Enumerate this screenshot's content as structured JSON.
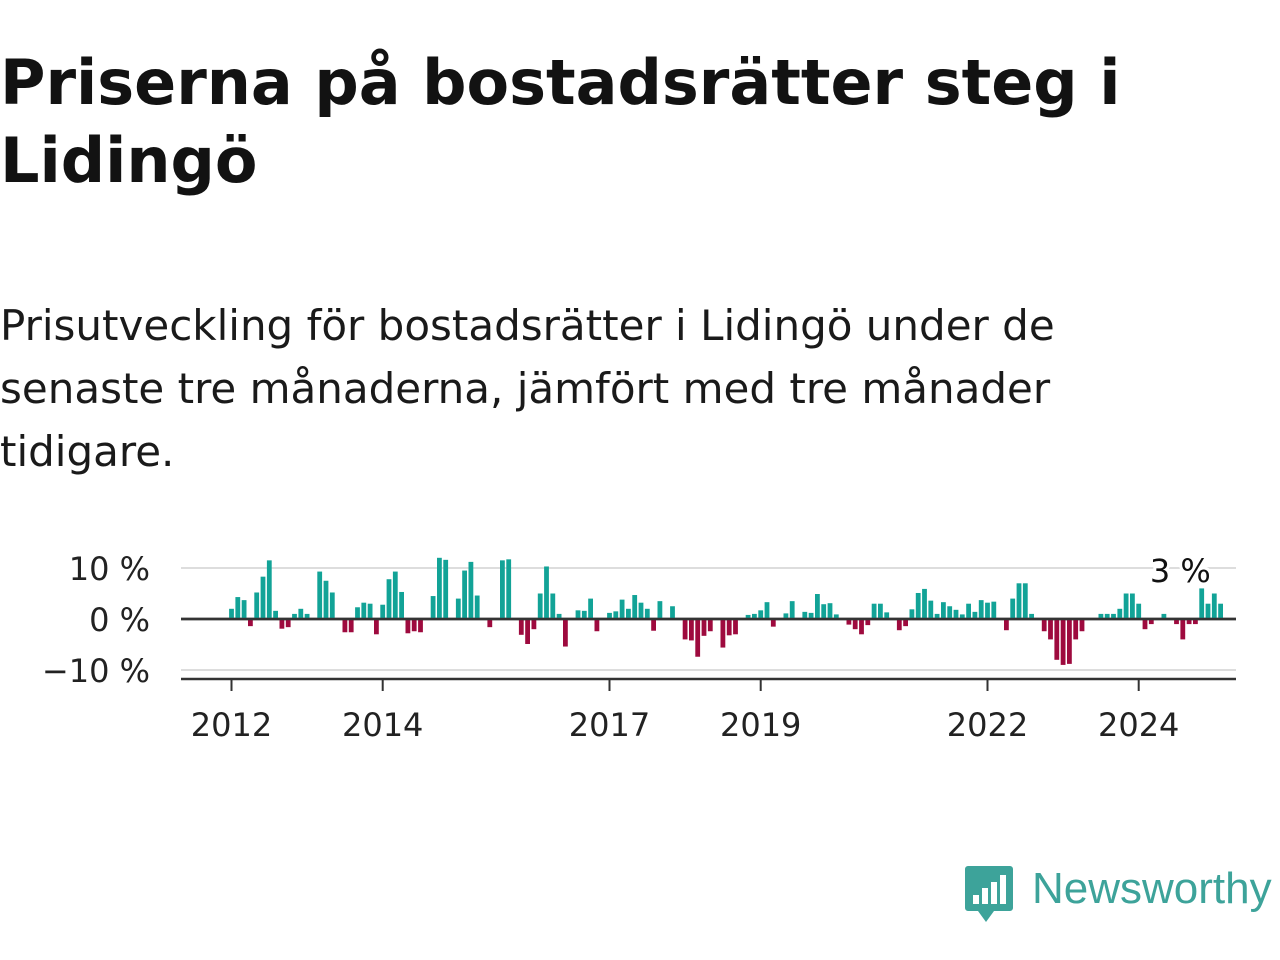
{
  "header": {
    "title": "Priserna på bostadsrätter steg i Lidingö",
    "subtitle": "Prisutveckling för bostadsrätter i Lidingö under de senaste tre månaderna, jämfört med tre månader tidigare."
  },
  "chart_data": {
    "type": "bar",
    "title": "Priserna på bostadsrätter steg i Lidingö",
    "subtitle": "Prisutveckling för bostadsrätter i Lidingö under de senaste tre månaderna, jämfört med tre månader tidigare.",
    "xlabel": "",
    "ylabel": "",
    "start": "2012-01",
    "frequency": "monthly",
    "unit": "%",
    "ylim": [
      -11,
      11
    ],
    "yticks": [
      10,
      0,
      -10
    ],
    "ytick_labels": [
      "10 %",
      "0 %",
      "−10 %"
    ],
    "xticks": [
      {
        "label": "2012",
        "index": 0
      },
      {
        "label": "2014",
        "index": 24
      },
      {
        "label": "2017",
        "index": 60
      },
      {
        "label": "2019",
        "index": 84
      },
      {
        "label": "2022",
        "index": 120
      },
      {
        "label": "2024",
        "index": 144
      }
    ],
    "grid": true,
    "colors": {
      "positive": "#12a397",
      "negative": "#9e0a3e",
      "grid": "#dddddd",
      "axis": "#333333",
      "text": "#222222"
    },
    "annotation": {
      "text": "3 %",
      "index": 151
    },
    "values": [
      2,
      4.3,
      3.7,
      -1.4,
      5.2,
      8.3,
      11.5,
      1.6,
      -1.9,
      -1.6,
      1,
      2,
      1,
      0,
      9.3,
      7.5,
      5.2,
      0,
      -2.6,
      -2.6,
      2.3,
      3.2,
      3,
      -3,
      2.8,
      7.8,
      9.3,
      5.3,
      -2.8,
      -2.4,
      -2.6,
      0,
      4.5,
      12,
      11.6,
      0,
      4,
      9.5,
      11.2,
      4.6,
      0,
      -1.6,
      0,
      11.5,
      11.7,
      0,
      -3.1,
      -4.9,
      -2,
      5,
      10.3,
      5,
      1,
      -5.4,
      0,
      1.7,
      1.6,
      4,
      -2.4,
      0,
      1.2,
      1.5,
      3.8,
      2,
      4.7,
      3.2,
      2,
      -2.3,
      3.5,
      0,
      2.5,
      0,
      -4,
      -4.2,
      -7.4,
      -3.3,
      -2.4,
      0,
      -5.6,
      -3.2,
      -3,
      0,
      0.8,
      1,
      1.7,
      3.3,
      -1.5,
      0,
      1.1,
      3.5,
      0,
      1.4,
      1.2,
      4.9,
      2.9,
      3.1,
      0.9,
      0,
      -1.1,
      -2,
      -3,
      -1.2,
      3,
      3,
      1.3,
      0,
      -2.2,
      -1.4,
      1.9,
      5.1,
      5.9,
      3.6,
      1,
      3.3,
      2.5,
      1.8,
      0.9,
      3,
      1.4,
      3.7,
      3.2,
      3.4,
      0,
      -2.2,
      4,
      7,
      7,
      1,
      0,
      -2.4,
      -4,
      -8,
      -9,
      -8.8,
      -4,
      -2.4,
      0,
      0,
      1,
      1,
      1,
      2,
      5,
      5,
      3,
      -2,
      -1,
      0,
      1,
      0,
      -1,
      -4,
      -1,
      -1,
      6,
      3,
      5,
      3
    ]
  },
  "brand": {
    "name": "Newsworthy"
  }
}
